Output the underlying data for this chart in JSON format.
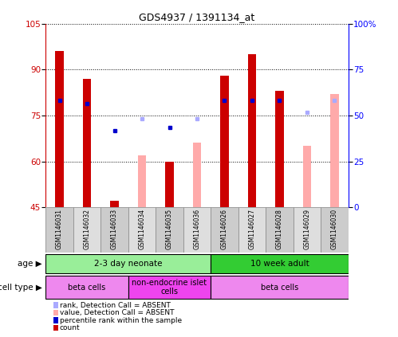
{
  "title": "GDS4937 / 1391134_at",
  "samples": [
    "GSM1146031",
    "GSM1146032",
    "GSM1146033",
    "GSM1146034",
    "GSM1146035",
    "GSM1146036",
    "GSM1146026",
    "GSM1146027",
    "GSM1146028",
    "GSM1146029",
    "GSM1146030"
  ],
  "count_values": [
    96,
    87,
    47,
    null,
    60,
    null,
    88,
    95,
    83,
    null,
    null
  ],
  "percentile_values": [
    80,
    79,
    70,
    null,
    71,
    null,
    80,
    80,
    80,
    null,
    null
  ],
  "absent_value_values": [
    null,
    null,
    null,
    62,
    null,
    66,
    null,
    null,
    null,
    65,
    82
  ],
  "absent_rank_values": [
    null,
    null,
    null,
    74,
    null,
    74,
    null,
    null,
    null,
    76,
    80
  ],
  "ylim": [
    45,
    105
  ],
  "yticks": [
    45,
    60,
    75,
    90,
    105
  ],
  "right_yticks": [
    0,
    25,
    50,
    75,
    100
  ],
  "red_color": "#cc0000",
  "blue_color": "#0000cc",
  "pink_color": "#ffaaaa",
  "light_blue_color": "#aaaaff",
  "age_groups": [
    {
      "label": "2-3 day neonate",
      "start": 0,
      "end": 6,
      "color": "#99ee99"
    },
    {
      "label": "10 week adult",
      "start": 6,
      "end": 11,
      "color": "#33cc33"
    }
  ],
  "cell_groups": [
    {
      "label": "beta cells",
      "start": 0,
      "end": 3,
      "color": "#ee88ee"
    },
    {
      "label": "non-endocrine islet\ncells",
      "start": 3,
      "end": 6,
      "color": "#ee44ee"
    },
    {
      "label": "beta cells",
      "start": 6,
      "end": 11,
      "color": "#ee88ee"
    }
  ],
  "legend_items": [
    {
      "label": "count",
      "color": "#cc0000",
      "marker": "s"
    },
    {
      "label": "percentile rank within the sample",
      "color": "#0000cc",
      "marker": "s"
    },
    {
      "label": "value, Detection Call = ABSENT",
      "color": "#ffaaaa",
      "marker": "s"
    },
    {
      "label": "rank, Detection Call = ABSENT",
      "color": "#aaaaff",
      "marker": "s"
    }
  ]
}
